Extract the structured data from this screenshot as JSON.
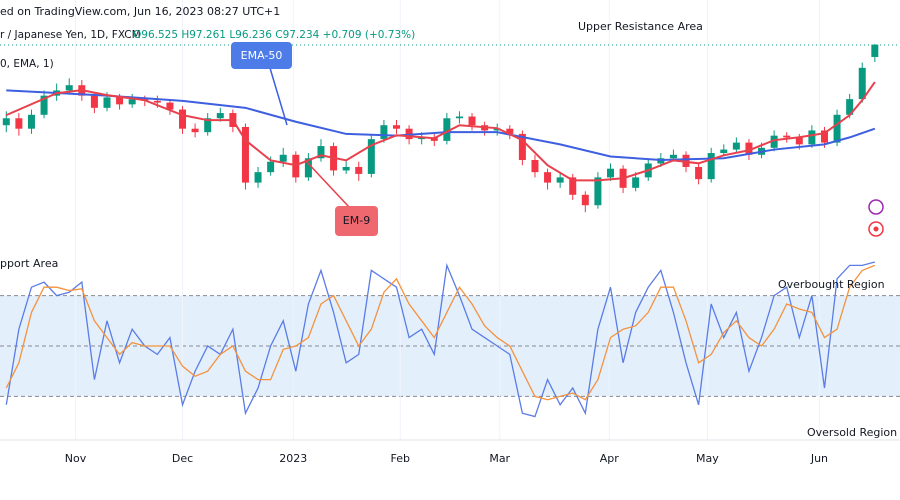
{
  "chart_data": [
    {
      "type": "candlestick",
      "source": "ed on TradingView.com, Jun 16, 2023 08:27 UTC+1",
      "title": "r / Japanese Yen, 1D, FXCM",
      "ohlc_text": "O96.525 H97.261 L96.236 C97.234 +0.709 (+0.73%)",
      "indicator_text": "0, EMA, 1)",
      "annotations": [
        "Upper Resistance Area",
        "pport Area"
      ],
      "open": [
        92.6,
        93.0,
        92.4,
        93.2,
        94.3,
        94.6,
        94.9,
        94.3,
        93.6,
        94.2,
        93.8,
        94.1,
        94.0,
        93.9,
        93.5,
        92.4,
        92.2,
        93.0,
        93.3,
        92.5,
        89.3,
        89.9,
        90.5,
        90.9,
        89.6,
        90.7,
        91.4,
        90.0,
        90.2,
        89.8,
        91.8,
        92.6,
        92.4,
        91.8,
        91.9,
        91.7,
        93.0,
        93.1,
        92.6,
        92.3,
        92.4,
        92.1,
        90.6,
        89.9,
        89.3,
        89.6,
        88.6,
        88.0,
        89.6,
        90.1,
        89.0,
        89.6,
        90.4,
        90.7,
        90.9,
        90.2,
        89.5,
        91.0,
        91.2,
        91.6,
        90.9,
        91.3,
        92.0,
        91.9,
        91.5,
        92.3,
        91.6,
        93.2,
        94.1,
        96.525
      ],
      "high": [
        93.4,
        93.3,
        93.5,
        94.6,
        95.0,
        95.3,
        95.2,
        94.5,
        94.5,
        94.4,
        94.4,
        94.3,
        94.3,
        94.1,
        93.7,
        92.7,
        93.3,
        93.6,
        93.5,
        92.7,
        90.2,
        90.8,
        91.3,
        91.1,
        91.0,
        91.8,
        91.6,
        90.6,
        90.5,
        92.1,
        92.9,
        92.9,
        92.6,
        92.2,
        92.1,
        93.3,
        93.4,
        93.3,
        92.8,
        92.7,
        92.6,
        92.3,
        90.9,
        90.1,
        89.9,
        89.8,
        88.8,
        89.9,
        90.4,
        90.3,
        89.9,
        90.7,
        91.0,
        91.2,
        91.1,
        90.4,
        91.3,
        91.5,
        91.9,
        91.8,
        91.6,
        92.3,
        92.2,
        92.1,
        92.6,
        92.5,
        93.5,
        94.4,
        96.2,
        97.261
      ],
      "low": [
        92.2,
        92.0,
        92.1,
        93.0,
        94.0,
        94.4,
        94.0,
        93.3,
        93.4,
        93.5,
        93.6,
        93.7,
        93.6,
        93.2,
        92.1,
        91.9,
        92.0,
        92.8,
        92.2,
        88.9,
        89.0,
        89.7,
        90.2,
        89.3,
        89.4,
        90.5,
        89.7,
        89.8,
        89.4,
        89.6,
        91.6,
        92.1,
        91.5,
        91.5,
        91.4,
        91.5,
        92.7,
        92.3,
        92.0,
        92.0,
        91.8,
        90.3,
        89.6,
        88.9,
        89.0,
        88.3,
        87.6,
        87.8,
        89.4,
        88.7,
        88.8,
        89.4,
        90.2,
        90.5,
        89.9,
        89.2,
        89.3,
        90.8,
        91.0,
        90.6,
        90.7,
        91.1,
        91.6,
        91.2,
        91.3,
        91.3,
        91.4,
        93.0,
        93.9,
        96.236
      ],
      "close": [
        93.0,
        92.4,
        93.2,
        94.3,
        94.6,
        94.9,
        94.3,
        93.6,
        94.2,
        93.8,
        94.1,
        94.0,
        93.9,
        93.5,
        92.4,
        92.2,
        93.0,
        93.3,
        92.5,
        89.3,
        89.9,
        90.5,
        90.9,
        89.6,
        90.7,
        91.4,
        90.0,
        90.2,
        89.8,
        91.8,
        92.6,
        92.4,
        91.8,
        91.9,
        91.7,
        93.0,
        93.1,
        92.6,
        92.3,
        92.4,
        92.1,
        90.6,
        89.9,
        89.3,
        89.6,
        88.6,
        88.0,
        89.6,
        90.1,
        89.0,
        89.6,
        90.4,
        90.7,
        90.9,
        90.2,
        89.5,
        91.0,
        91.2,
        91.6,
        90.9,
        91.3,
        92.0,
        91.9,
        91.5,
        92.3,
        91.6,
        93.2,
        94.1,
        95.9,
        97.234
      ],
      "up_color": "#089981",
      "down_color": "#f23645",
      "series": [
        {
          "name": "EMA-50",
          "color": "#3d5fe0",
          "x": [
            0,
            8,
            14,
            19,
            23,
            27,
            31,
            35,
            39,
            44,
            48,
            52,
            57,
            61,
            65,
            67,
            69
          ],
          "values": [
            94.6,
            94.3,
            94.0,
            93.6,
            92.8,
            92.1,
            92.0,
            92.2,
            92.2,
            91.5,
            90.8,
            90.6,
            90.7,
            91.2,
            91.5,
            91.9,
            92.4
          ]
        },
        {
          "name": "EM-9",
          "color": "#e8404c",
          "x": [
            0,
            4,
            6,
            8,
            11,
            14,
            16,
            18,
            19,
            21,
            23,
            25,
            27,
            29,
            31,
            34,
            36,
            39,
            41,
            43,
            45,
            47,
            49,
            51,
            53,
            55,
            57,
            59,
            61,
            63,
            65,
            67,
            68,
            69
          ],
          "values": [
            93.18,
            94.44,
            94.62,
            94.33,
            94.04,
            93.18,
            92.89,
            92.89,
            91.74,
            90.58,
            90.3,
            90.87,
            90.58,
            91.45,
            92.02,
            91.85,
            92.6,
            92.43,
            91.74,
            90.3,
            89.43,
            89.43,
            89.55,
            90.01,
            90.58,
            90.41,
            90.87,
            91.16,
            91.74,
            91.91,
            92.14,
            93.18,
            94.04,
            95.08
          ]
        }
      ],
      "xlim": [
        -0.5,
        71
      ],
      "ylim": [
        86,
        99.8
      ]
    },
    {
      "type": "line",
      "annotations": [
        "Overbought Region",
        "Oversold Region"
      ],
      "series": [
        {
          "color": "#5b7ce6",
          "values": [
            15,
            60,
            85,
            88,
            80,
            82,
            88,
            30,
            65,
            40,
            60,
            50,
            45,
            55,
            15,
            35,
            50,
            45,
            60,
            10,
            25,
            50,
            65,
            35,
            75,
            95,
            70,
            40,
            45,
            95,
            90,
            85,
            55,
            60,
            45,
            98,
            80,
            60,
            55,
            50,
            45,
            10,
            8,
            30,
            15,
            25,
            10,
            60,
            85,
            40,
            70,
            85,
            95,
            70,
            40,
            15,
            75,
            55,
            70,
            35,
            55,
            80,
            85,
            55,
            80,
            25,
            90,
            98,
            98,
            100
          ]
        },
        {
          "color": "#f5923e",
          "values": [
            25,
            40,
            70,
            85,
            85,
            83,
            84,
            65,
            55,
            45,
            52,
            50,
            50,
            50,
            38,
            32,
            35,
            45,
            50,
            35,
            30,
            30,
            48,
            50,
            55,
            75,
            80,
            65,
            50,
            60,
            82,
            90,
            75,
            65,
            55,
            70,
            85,
            75,
            62,
            55,
            50,
            35,
            20,
            18,
            20,
            22,
            18,
            30,
            55,
            60,
            62,
            70,
            85,
            85,
            65,
            40,
            45,
            58,
            65,
            55,
            50,
            60,
            75,
            72,
            70,
            55,
            60,
            85,
            95,
            98
          ]
        }
      ],
      "levels": [
        80,
        50,
        20
      ],
      "band_color": "#e3f0fb",
      "xlim": [
        -0.5,
        71
      ],
      "ylim": [
        0,
        100
      ],
      "xticks": [
        {
          "value": 5.5,
          "label": "Nov"
        },
        {
          "value": 14,
          "label": "Dec"
        },
        {
          "value": 22.8,
          "label": "2023"
        },
        {
          "value": 31.3,
          "label": "Feb"
        },
        {
          "value": 39.2,
          "label": "Mar"
        },
        {
          "value": 47.9,
          "label": "Apr"
        },
        {
          "value": 55.7,
          "label": "May"
        },
        {
          "value": 64.6,
          "label": "Jun"
        }
      ]
    }
  ]
}
